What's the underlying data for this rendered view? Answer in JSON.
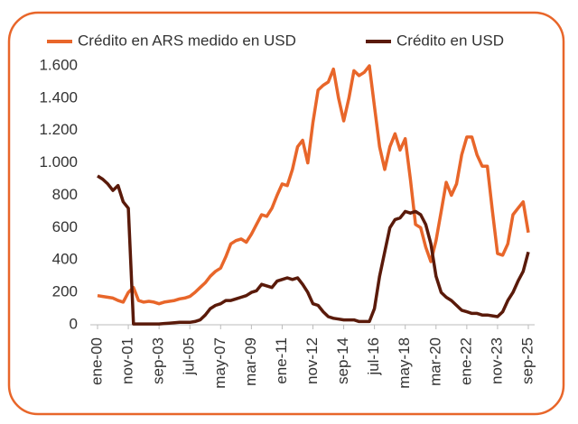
{
  "chart_data": {
    "type": "line",
    "categories": [
      "ene-00",
      null,
      null,
      null,
      null,
      null,
      "nov-01",
      null,
      null,
      null,
      null,
      null,
      "sep-03",
      null,
      null,
      null,
      null,
      null,
      "jul-05",
      null,
      null,
      null,
      null,
      null,
      "may-07",
      null,
      null,
      null,
      null,
      null,
      "mar-09",
      null,
      null,
      null,
      null,
      null,
      "ene-11",
      null,
      null,
      null,
      null,
      null,
      "nov-12",
      null,
      null,
      null,
      null,
      null,
      "sep-14",
      null,
      null,
      null,
      null,
      null,
      "jul-16",
      null,
      null,
      null,
      null,
      null,
      "may-18",
      null,
      null,
      null,
      null,
      null,
      "mar-20",
      null,
      null,
      null,
      null,
      null,
      "ene-22",
      null,
      null,
      null,
      null,
      null,
      "nov-23",
      null,
      null,
      null,
      null,
      null,
      "sep-25"
    ],
    "series": [
      {
        "name": "Crédito en ARS medido en USD",
        "color": "#e8662a",
        "values": [
          180,
          175,
          170,
          165,
          150,
          140,
          200,
          230,
          150,
          140,
          145,
          140,
          130,
          140,
          145,
          150,
          160,
          165,
          175,
          200,
          230,
          260,
          300,
          330,
          350,
          420,
          500,
          520,
          530,
          510,
          560,
          620,
          680,
          670,
          720,
          800,
          870,
          860,
          960,
          1100,
          1140,
          1000,
          1250,
          1450,
          1480,
          1500,
          1580,
          1400,
          1260,
          1400,
          1570,
          1540,
          1560,
          1600,
          1350,
          1100,
          960,
          1100,
          1180,
          1080,
          1150,
          900,
          620,
          600,
          480,
          390,
          520,
          700,
          880,
          800,
          870,
          1050,
          1160,
          1160,
          1050,
          980,
          980,
          700,
          440,
          430,
          500,
          680,
          720,
          760,
          570
        ]
      },
      {
        "name": "Crédito en USD",
        "color": "#5a1a0a",
        "values": [
          920,
          900,
          870,
          830,
          860,
          760,
          720,
          5,
          5,
          5,
          5,
          5,
          5,
          8,
          10,
          12,
          15,
          15,
          15,
          20,
          30,
          60,
          100,
          120,
          130,
          150,
          150,
          160,
          170,
          180,
          200,
          210,
          250,
          240,
          230,
          270,
          280,
          290,
          280,
          290,
          250,
          200,
          130,
          120,
          80,
          50,
          40,
          35,
          30,
          30,
          30,
          20,
          20,
          20,
          100,
          300,
          450,
          600,
          650,
          660,
          700,
          690,
          700,
          680,
          620,
          500,
          300,
          200,
          170,
          150,
          120,
          90,
          80,
          70,
          70,
          60,
          60,
          55,
          50,
          80,
          150,
          200,
          270,
          330,
          450
        ]
      }
    ],
    "ylim": [
      0,
      1600
    ],
    "yticks": [
      0,
      200,
      400,
      600,
      800,
      {
        "value": 1000,
        "label": "1.000"
      },
      {
        "value": 1200,
        "label": "1.200"
      },
      {
        "value": 1400,
        "label": "1.400"
      },
      {
        "value": 1600,
        "label": "1.600"
      }
    ],
    "legend": "top"
  }
}
